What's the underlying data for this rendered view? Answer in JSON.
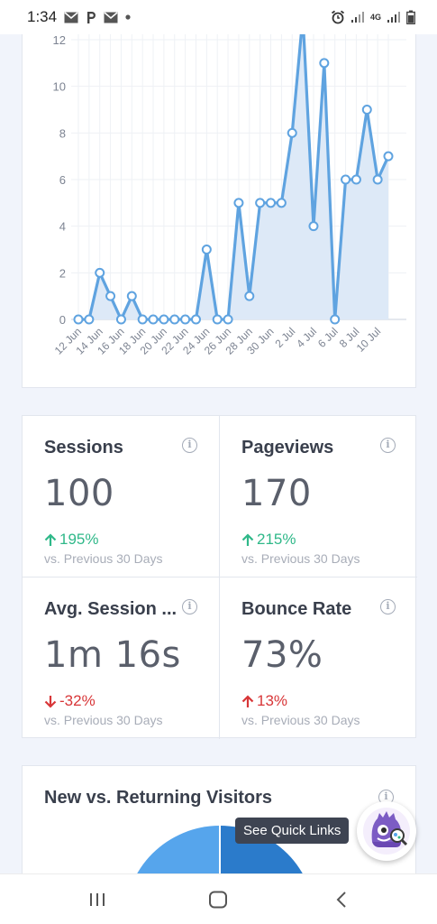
{
  "status_bar": {
    "time": "1:34",
    "network": "4G"
  },
  "chart_data": {
    "type": "area",
    "x_ticks": [
      "12 Jun",
      "14 Jun",
      "16 Jun",
      "18 Jun",
      "20 Jun",
      "22 Jun",
      "24 Jun",
      "26 Jun",
      "28 Jun",
      "30 Jun",
      "2 Jul",
      "4 Jul",
      "6 Jul",
      "8 Jul",
      "10 Jul"
    ],
    "y_ticks": [
      0,
      2,
      4,
      6,
      8,
      10,
      12
    ],
    "ylim": [
      0,
      12
    ],
    "values": [
      0,
      0,
      2,
      1,
      0,
      1,
      0,
      0,
      0,
      0,
      0,
      0,
      3,
      0,
      0,
      5,
      1,
      5,
      5,
      5,
      8,
      13,
      4,
      11,
      0,
      6,
      6,
      9,
      6,
      7
    ],
    "color": "#5fa3e0",
    "fill": "#dde9f7",
    "grid": true
  },
  "stats": [
    {
      "title": "Sessions",
      "value": "100",
      "change": "195%",
      "direction": "up",
      "compare": "vs. Previous 30 Days"
    },
    {
      "title": "Pageviews",
      "value": "170",
      "change": "215%",
      "direction": "up",
      "compare": "vs. Previous 30 Days"
    },
    {
      "title": "Avg. Session ...",
      "value": "1m 16s",
      "change": "-32%",
      "direction": "down",
      "compare": "vs. Previous 30 Days"
    },
    {
      "title": "Bounce Rate",
      "value": "73%",
      "change": "13%",
      "direction": "up_bad",
      "compare": "vs. Previous 30 Days"
    }
  ],
  "info_icon_glyph": "i",
  "visitors": {
    "title": "New vs. Returning Visitors",
    "colors": [
      "#56a5ec",
      "#2b7bcb"
    ]
  },
  "quick_links": {
    "tooltip": "See Quick Links"
  },
  "colors": {
    "up": "#2fb889",
    "down": "#d83638",
    "accent": "#5fa3e0"
  }
}
